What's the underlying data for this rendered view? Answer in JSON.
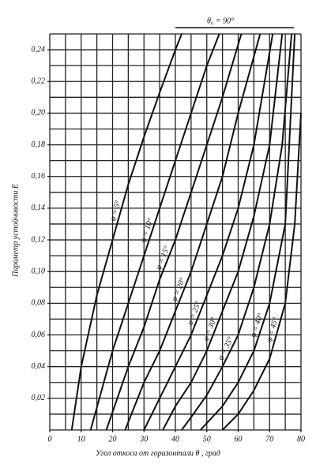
{
  "chart_data": {
    "type": "line",
    "xlabel": "Угол откоса от горизонтали θ , град",
    "ylabel": "Параметр устойчивости E",
    "annotation": "θ₀ = 90°",
    "xlim": [
      0,
      80
    ],
    "xticks": [
      0,
      10,
      20,
      30,
      40,
      50,
      60,
      70,
      80
    ],
    "ylim": [
      0,
      0.25
    ],
    "yticks": [
      {
        "value": 0.02,
        "label": "0,02"
      },
      {
        "value": 0.04,
        "label": "0,04"
      },
      {
        "value": 0.06,
        "label": "0,06"
      },
      {
        "value": 0.08,
        "label": "0,08"
      },
      {
        "value": 0.1,
        "label": "0,10"
      },
      {
        "value": 0.12,
        "label": "0,12"
      },
      {
        "value": 0.14,
        "label": "0,14"
      },
      {
        "value": 0.16,
        "label": "0,16"
      },
      {
        "value": 0.18,
        "label": "0,18"
      },
      {
        "value": 0.2,
        "label": "0,20"
      },
      {
        "value": 0.22,
        "label": "0,22"
      },
      {
        "value": 0.24,
        "label": "0,24"
      }
    ],
    "grid": true,
    "color": "#111111",
    "series": [
      {
        "name": "φ = 5°",
        "x": [
          7,
          10,
          15,
          20,
          25,
          30,
          35,
          40,
          42
        ],
        "values": [
          0,
          0.04,
          0.085,
          0.12,
          0.155,
          0.185,
          0.213,
          0.24,
          0.25
        ]
      },
      {
        "name": "φ = 10°",
        "x": [
          13,
          20,
          25,
          30,
          35,
          40,
          45,
          50,
          54
        ],
        "values": [
          0,
          0.05,
          0.08,
          0.11,
          0.14,
          0.17,
          0.2,
          0.23,
          0.25
        ]
      },
      {
        "name": "φ = 15°",
        "x": [
          18,
          25,
          30,
          35,
          40,
          45,
          50,
          55,
          61
        ],
        "values": [
          0,
          0.04,
          0.065,
          0.095,
          0.12,
          0.15,
          0.18,
          0.21,
          0.25
        ]
      },
      {
        "name": "φ = 20°",
        "x": [
          24,
          30,
          35,
          40,
          45,
          50,
          55,
          60,
          67
        ],
        "values": [
          0,
          0.03,
          0.05,
          0.075,
          0.1,
          0.13,
          0.16,
          0.2,
          0.25
        ]
      },
      {
        "name": "φ = 25°",
        "x": [
          30,
          35,
          40,
          45,
          50,
          55,
          60,
          65,
          71
        ],
        "values": [
          0,
          0.02,
          0.04,
          0.06,
          0.085,
          0.11,
          0.14,
          0.18,
          0.25
        ]
      },
      {
        "name": "φ = 30°",
        "x": [
          36,
          40,
          45,
          50,
          55,
          60,
          65,
          70,
          74
        ],
        "values": [
          0,
          0.015,
          0.03,
          0.05,
          0.075,
          0.1,
          0.135,
          0.18,
          0.25
        ]
      },
      {
        "name": "φ = 35°",
        "x": [
          42,
          45,
          50,
          55,
          60,
          65,
          70,
          74,
          77
        ],
        "values": [
          0,
          0.008,
          0.022,
          0.04,
          0.06,
          0.09,
          0.13,
          0.18,
          0.25
        ]
      },
      {
        "name": "φ = 40°",
        "x": [
          48,
          55,
          60,
          65,
          70,
          75,
          78
        ],
        "values": [
          0,
          0.015,
          0.03,
          0.05,
          0.08,
          0.13,
          0.25
        ]
      },
      {
        "name": "φ = 45°",
        "x": [
          55,
          60,
          65,
          70,
          75,
          78,
          80
        ],
        "values": [
          0,
          0.01,
          0.025,
          0.045,
          0.08,
          0.13,
          0.2
        ]
      }
    ]
  }
}
